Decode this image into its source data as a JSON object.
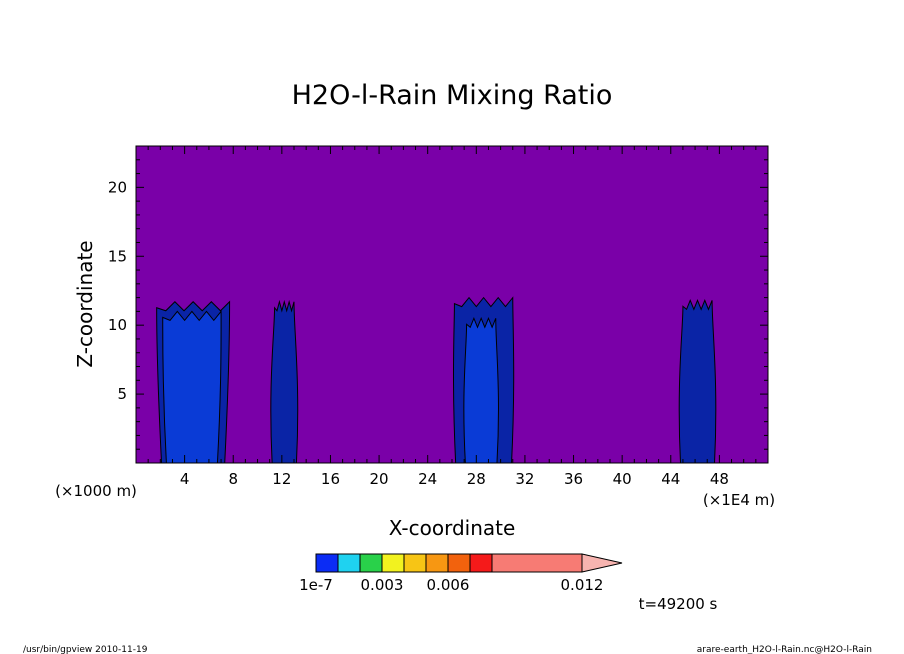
{
  "chart_data": {
    "type": "heatmap",
    "title": "H2O-l-Rain Mixing Ratio",
    "xlabel": "X-coordinate",
    "ylabel": "Z-coordinate",
    "x_unit_left": "(×1000 m)",
    "x_unit_right": "(×1E4 m)",
    "xlim": [
      0,
      52
    ],
    "ylim": [
      0,
      23
    ],
    "x_ticks": [
      4,
      8,
      12,
      16,
      20,
      24,
      28,
      32,
      36,
      40,
      44,
      48
    ],
    "y_ticks": [
      5,
      10,
      15,
      20
    ],
    "background_value": "below 1e-7",
    "colorbar": {
      "labels": [
        {
          "text": "1e-7",
          "value": 0
        },
        {
          "text": "0.003",
          "value": 0.003
        },
        {
          "text": "0.006",
          "value": 0.006
        },
        {
          "text": "0.012",
          "value": 0.012
        }
      ],
      "colors": [
        "#0b2cf5",
        "#1fd2f0",
        "#29d14a",
        "#f2f21f",
        "#f7c515",
        "#f79712",
        "#f2620d",
        "#f51a1a",
        "#f77b74",
        "#f7b4b0"
      ]
    },
    "colors": {
      "background": "#7a00a8",
      "rain_dark": "#0a24a6",
      "rain_mid": "#0a3bd6",
      "rain_light": "#1e5bff"
    },
    "regions": [
      {
        "level": "rain_dark",
        "x_center": 4.7,
        "x_halfwidth_bottom": 2.6,
        "x_halfwidth_top": 3.0,
        "z_top": 11.7
      },
      {
        "level": "rain_mid",
        "x_center": 4.6,
        "x_halfwidth_bottom": 2.1,
        "x_halfwidth_top": 2.4,
        "z_top": 11.0
      },
      {
        "level": "rain_dark",
        "x_center": 12.2,
        "x_halfwidth_bottom": 1.0,
        "x_halfwidth_top": 0.8,
        "z_top": 11.7
      },
      {
        "level": "rain_dark",
        "x_center": 28.6,
        "x_halfwidth_bottom": 2.3,
        "x_halfwidth_top": 2.4,
        "z_top": 12.0
      },
      {
        "level": "rain_mid",
        "x_center": 28.4,
        "x_halfwidth_bottom": 1.3,
        "x_halfwidth_top": 1.2,
        "z_top": 10.5
      },
      {
        "level": "rain_dark",
        "x_center": 46.2,
        "x_halfwidth_bottom": 1.4,
        "x_halfwidth_top": 1.2,
        "z_top": 11.8
      }
    ]
  },
  "time_label": "t=49200 s",
  "footer": {
    "left": "/usr/bin/gpview   2010-11-19",
    "right": "arare-earth_H2O-l-Rain.nc@H2O-l-Rain"
  }
}
